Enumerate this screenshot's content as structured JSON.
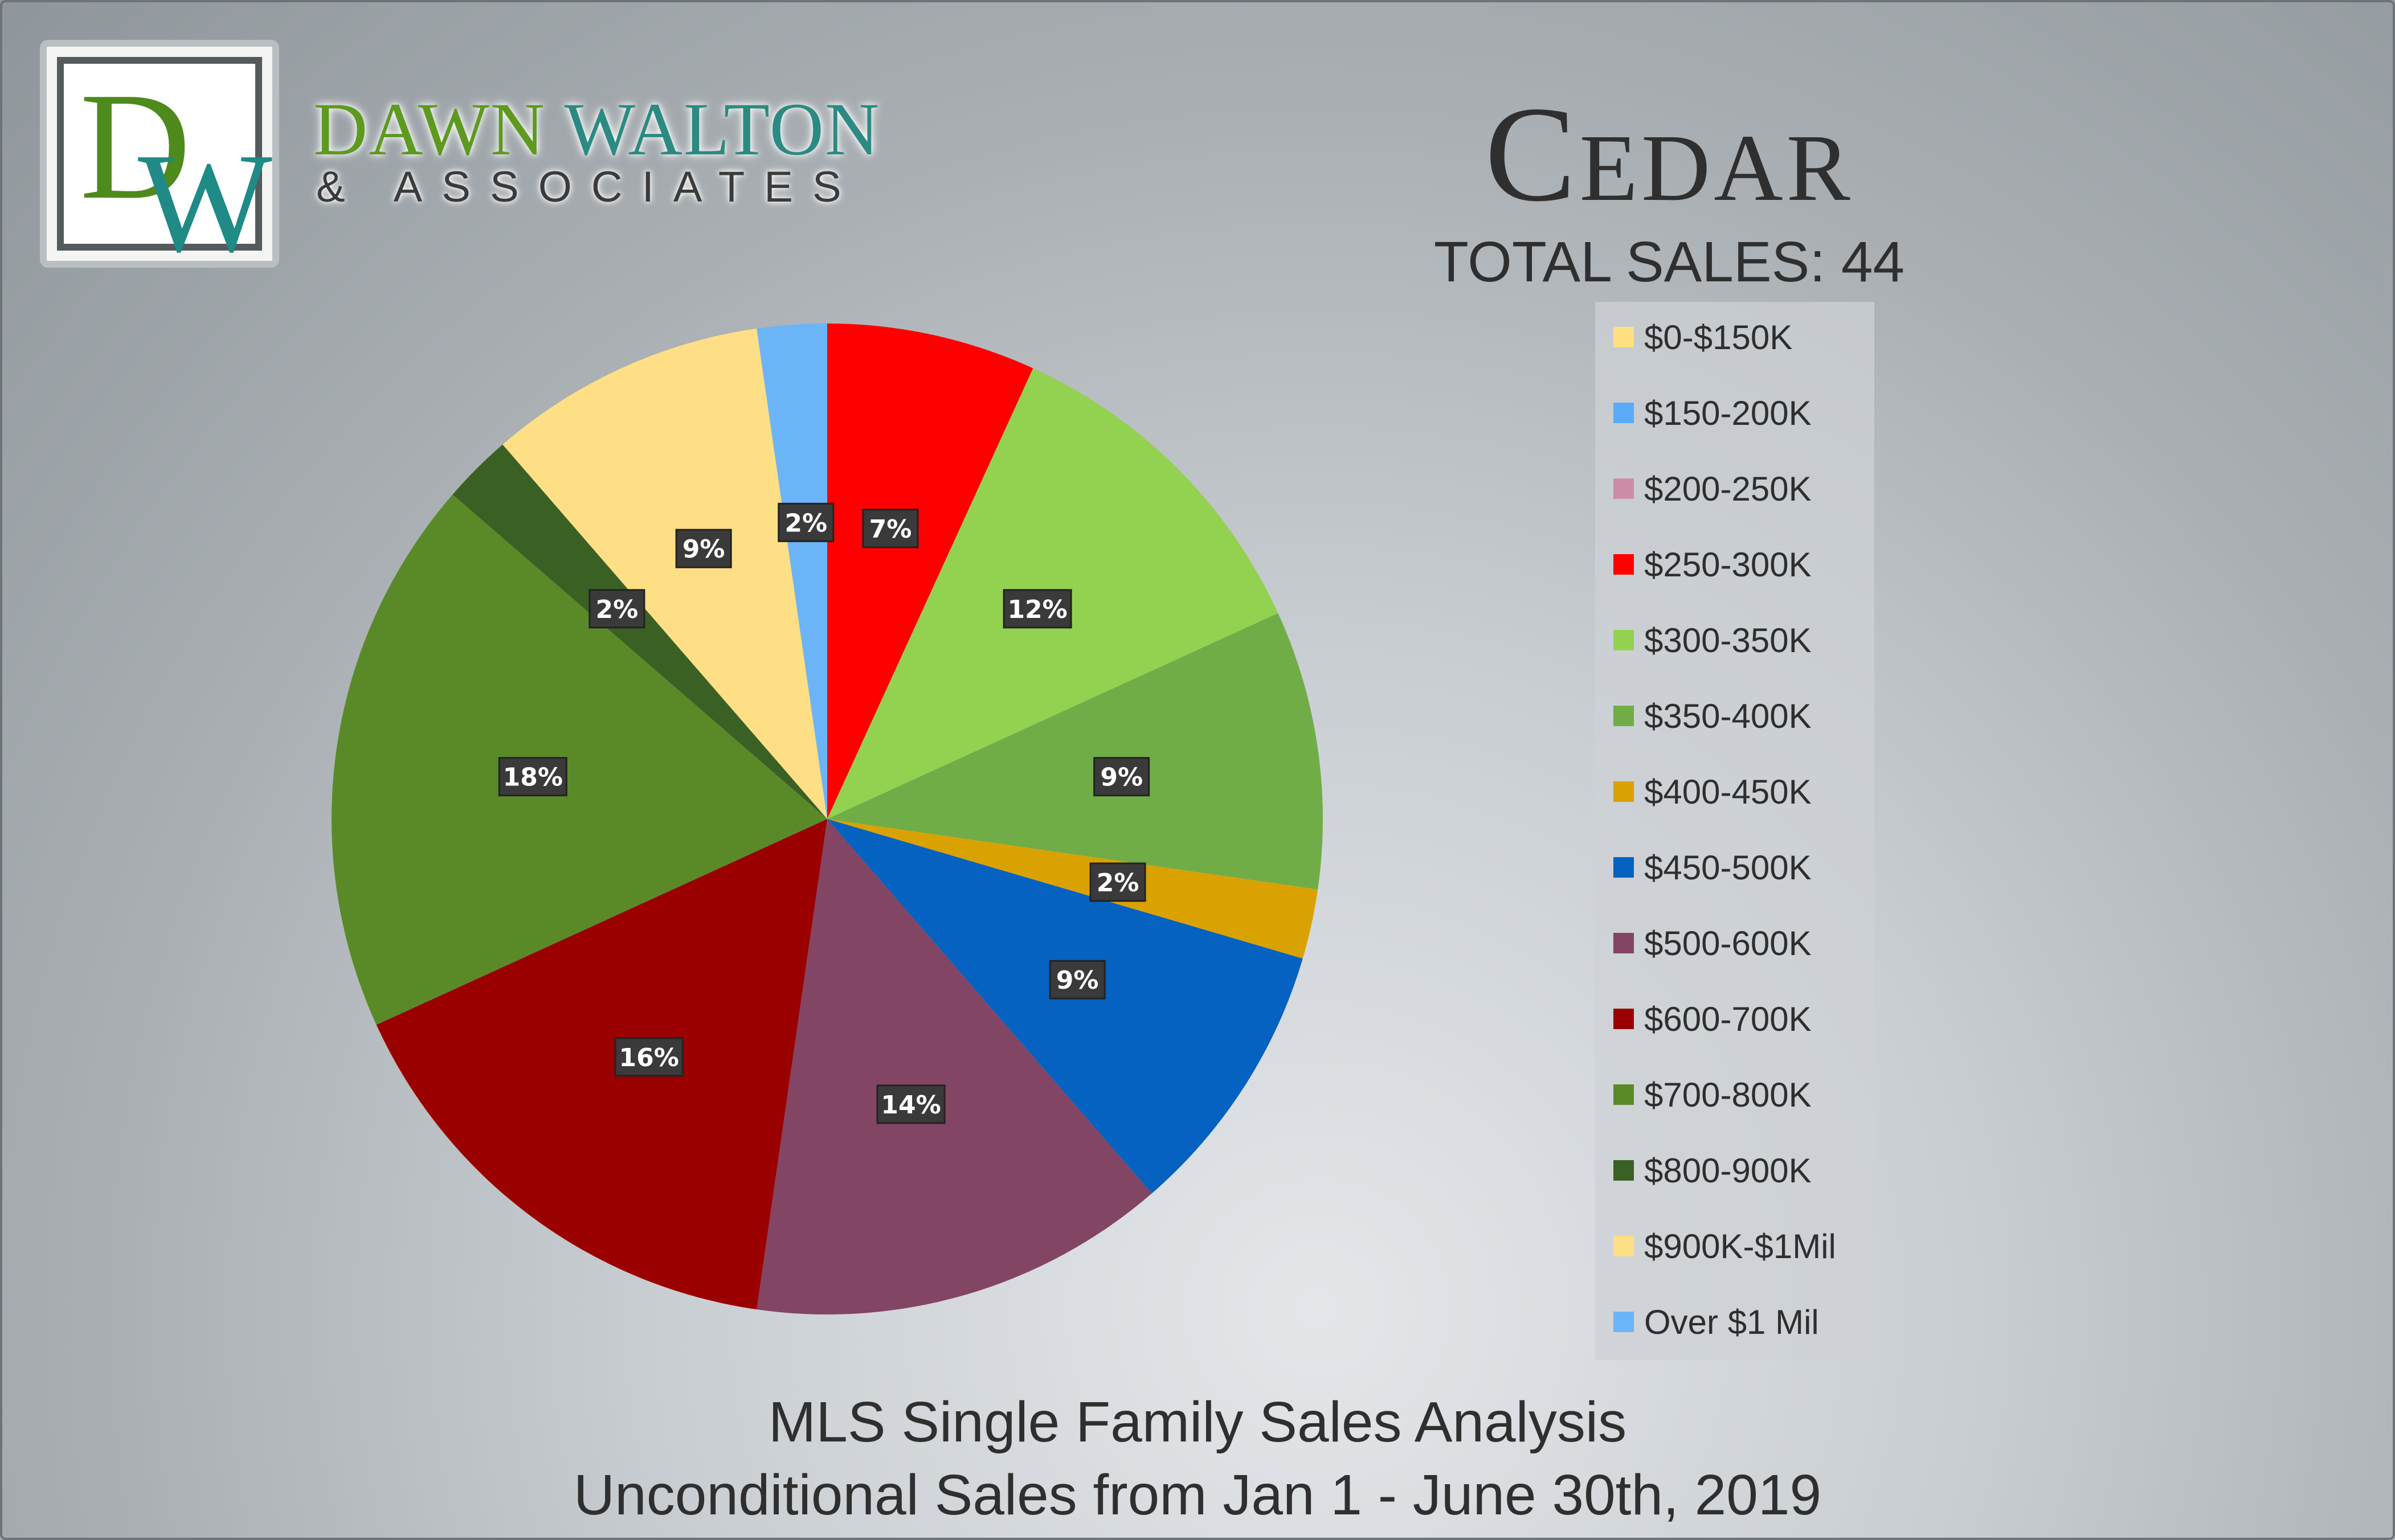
{
  "brand": {
    "logo_letter_1": "D",
    "logo_letter_2": "W",
    "name_first": "DAWN",
    "name_last": "WALTON",
    "tagline": "& ASSOCIATES",
    "green": "#5d9a1f",
    "teal": "#2b8a82"
  },
  "header": {
    "city": "Cedar",
    "total_sales": "TOTAL SALES: 44"
  },
  "footer": {
    "line1": "MLS Single Family Sales Analysis",
    "line2": "Unconditional Sales from Jan 1 - June 30th, 2019"
  },
  "chart_data": {
    "type": "pie",
    "title": "",
    "total": 44,
    "legend_placement": "right",
    "slices": [
      {
        "label": "$0-$150K",
        "value": 0,
        "percent": "0%",
        "color": "#ffdf80"
      },
      {
        "label": "$150-200K",
        "value": 0,
        "percent": "0%",
        "color": "#5aaaf6"
      },
      {
        "label": "$200-250K",
        "value": 0,
        "percent": "0%",
        "color": "#cc8ca8"
      },
      {
        "label": "$250-300K",
        "value": 3,
        "percent": "7%",
        "color": "#fe0000"
      },
      {
        "label": "$300-350K",
        "value": 5,
        "percent": "12%",
        "color": "#93d150"
      },
      {
        "label": "$350-400K",
        "value": 4,
        "percent": "9%",
        "color": "#70ad47"
      },
      {
        "label": "$400-450K",
        "value": 1,
        "percent": "2%",
        "color": "#d9a200"
      },
      {
        "label": "$450-500K",
        "value": 4,
        "percent": "9%",
        "color": "#0562c1"
      },
      {
        "label": "$500-600K",
        "value": 6,
        "percent": "14%",
        "color": "#824563"
      },
      {
        "label": "$600-700K",
        "value": 7,
        "percent": "16%",
        "color": "#9a0000"
      },
      {
        "label": "$700-800K",
        "value": 8,
        "percent": "18%",
        "color": "#5a8a28"
      },
      {
        "label": "$800-900K",
        "value": 1,
        "percent": "2%",
        "color": "#3b6024"
      },
      {
        "label": "$900K-$1Mil",
        "value": 4,
        "percent": "9%",
        "color": "#ffdf86"
      },
      {
        "label": "Over $1 Mil",
        "value": 1,
        "percent": "2%",
        "color": "#6cb4f8"
      }
    ]
  }
}
